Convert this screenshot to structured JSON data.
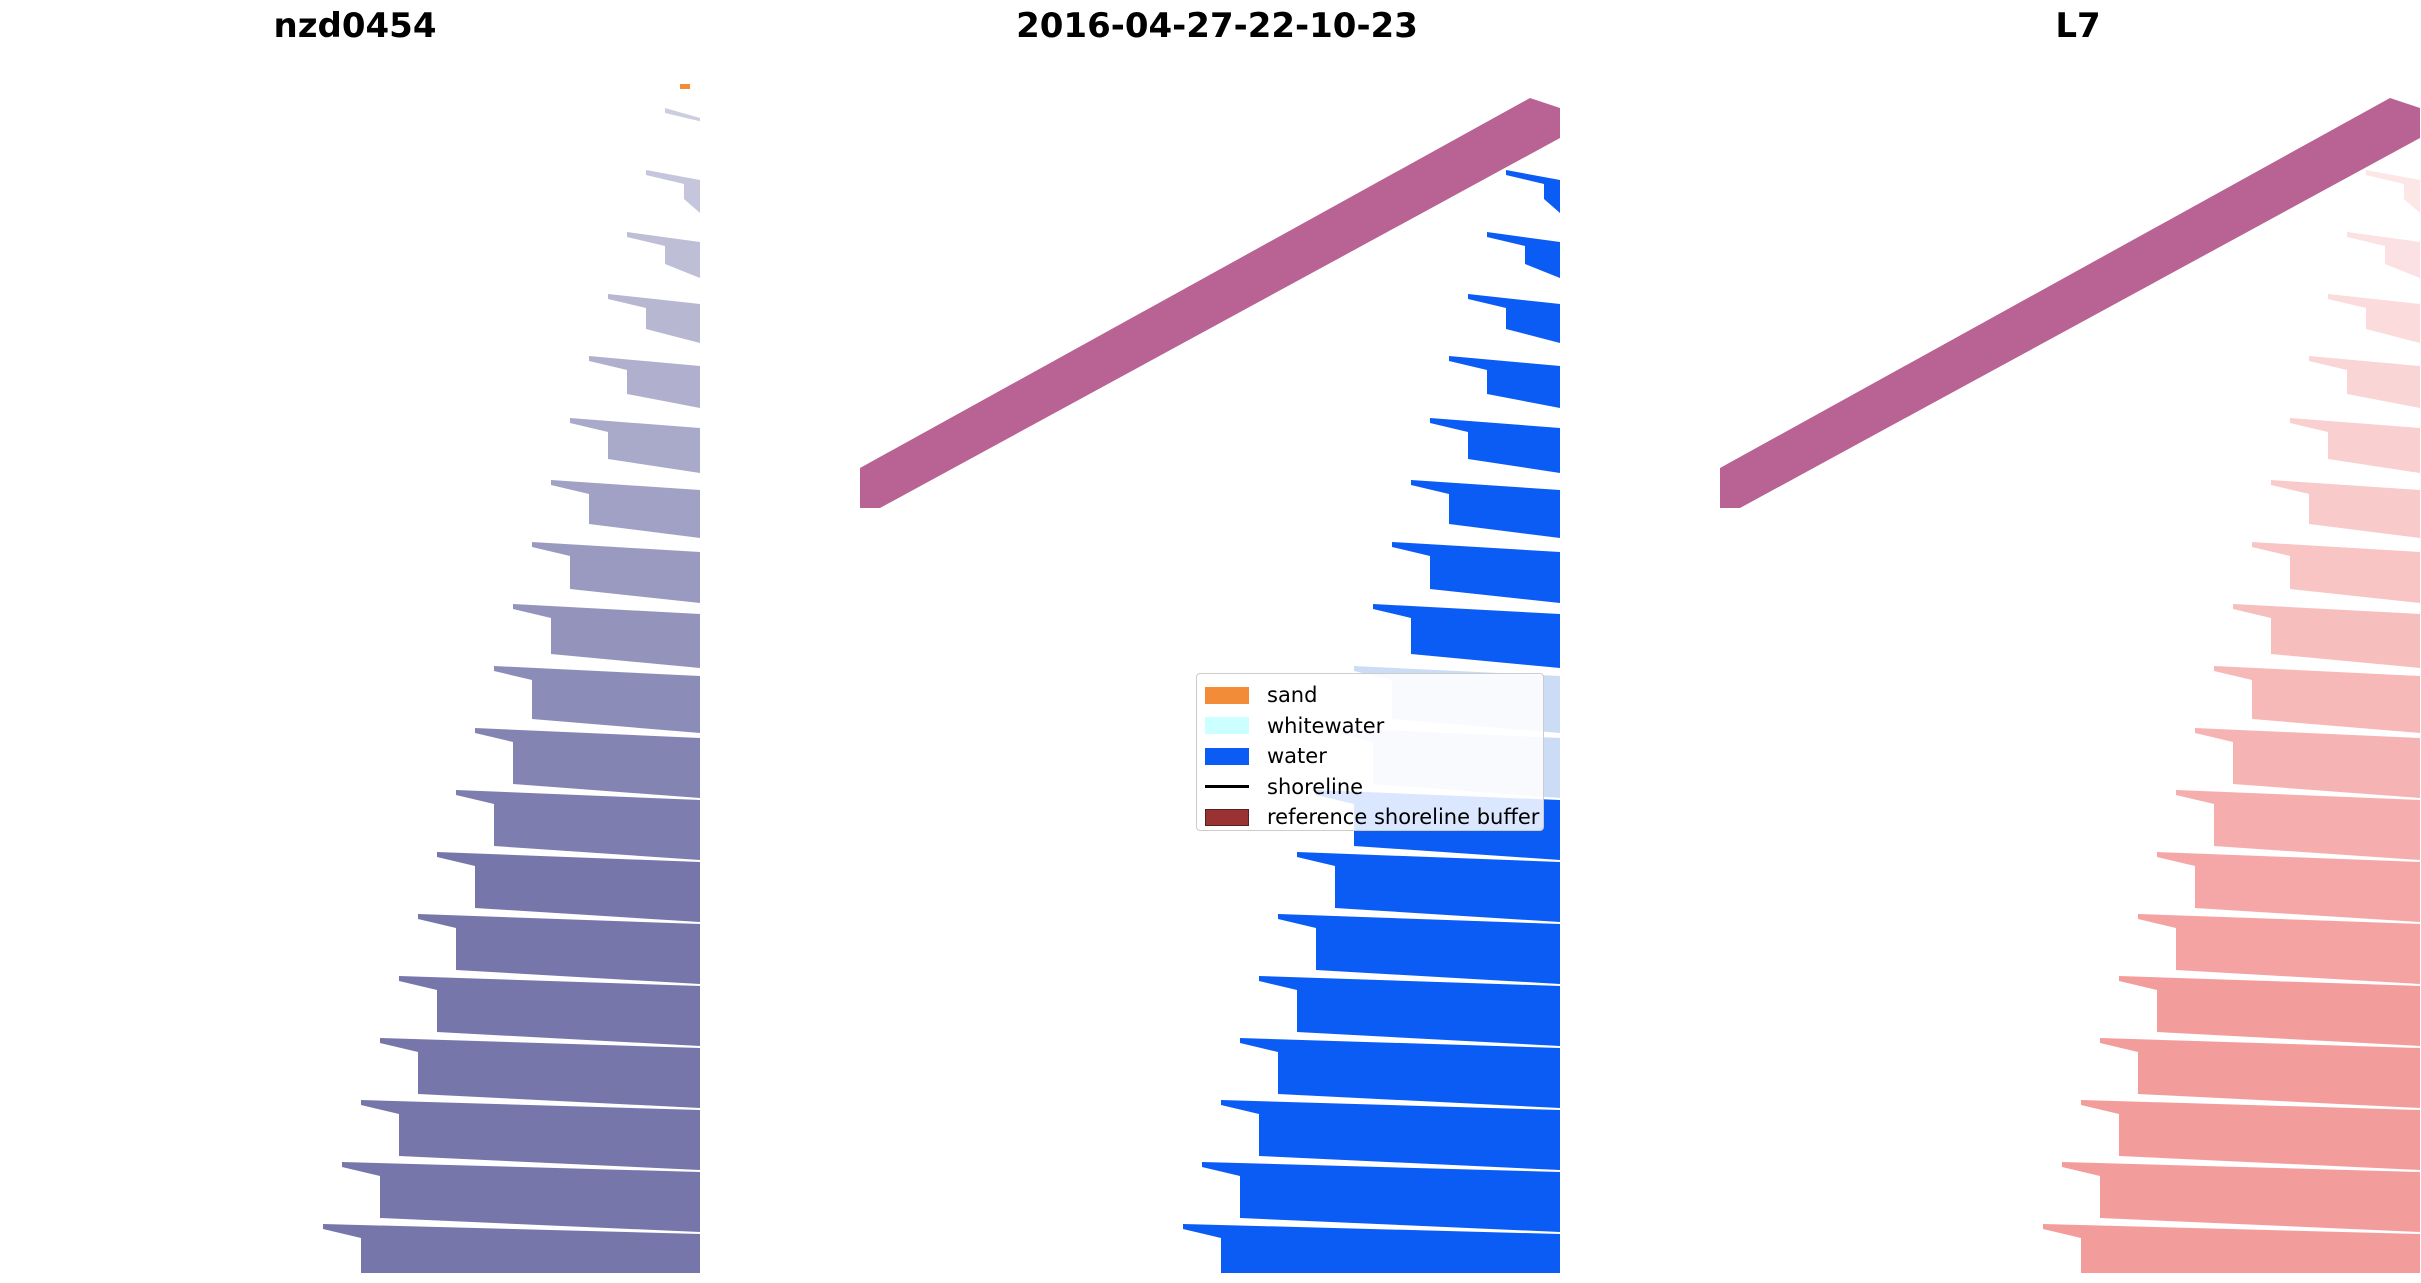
{
  "titles": {
    "site": "nzd0454",
    "date": "2016-04-27-22-10-23",
    "satellite": "L7"
  },
  "legend": {
    "items": [
      {
        "label": "sand",
        "color": "#f28c38",
        "kind": "patch"
      },
      {
        "label": "whitewater",
        "color": "#ccffff",
        "kind": "patch"
      },
      {
        "label": "water",
        "color": "#0a5cf5",
        "kind": "patch"
      },
      {
        "label": "shoreline",
        "color": "#000000",
        "kind": "line"
      },
      {
        "label": "reference shoreline buffer",
        "color": "#993333",
        "kind": "patch"
      }
    ]
  },
  "colors": {
    "rgb_image": "#6f6fa6",
    "classified_water": "#0a5cf5",
    "classified_whitewater": "#ccdcf5",
    "buffer": "#b86393",
    "index_image": "#f08080",
    "sand": "#f28c38"
  }
}
